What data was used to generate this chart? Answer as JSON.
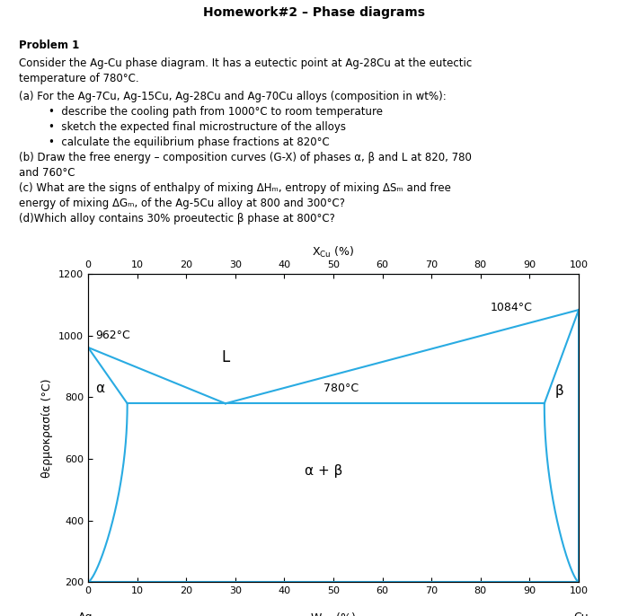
{
  "title": "Homework#2 – Phase diagrams",
  "line_color": "#29ABE2",
  "bg_color": "#ffffff",
  "text_color": "#000000",
  "xmin": 0,
  "xmax": 100,
  "ymin": 200,
  "ymax": 1200,
  "xticks": [
    0,
    10,
    20,
    30,
    40,
    50,
    60,
    70,
    80,
    90,
    100
  ],
  "yticks": [
    200,
    400,
    600,
    800,
    1000,
    1200
  ],
  "eutectic_temp": 780,
  "eutectic_comp": 28,
  "Ag_melt": 962,
  "Cu_melt": 1084,
  "alpha_solvus_eutectic_x": 8,
  "beta_solvus_eutectic_x": 93,
  "label_962": "962°C",
  "label_1084": "1084°C",
  "label_780": "780°C",
  "label_L": "L",
  "label_alpha": "α",
  "label_beta": "β",
  "label_alpha_beta": "α + β",
  "font_size_title": 10,
  "font_size_text": 8.5,
  "font_size_axis": 8,
  "font_size_annot": 9
}
